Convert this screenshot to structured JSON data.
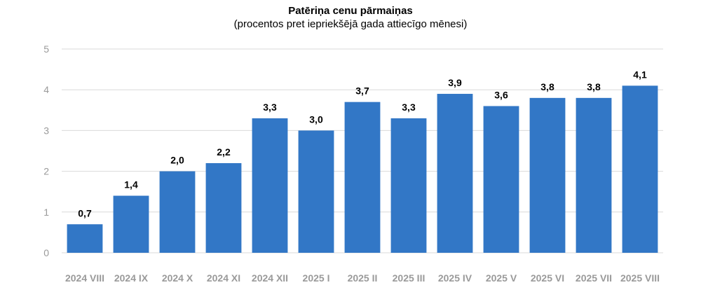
{
  "chart_data": {
    "type": "bar",
    "title": "Patēriņa cenu pārmaiņas",
    "subtitle": "(procentos pret iepriekšējā gada attiecīgo mēnesi)",
    "categories": [
      "2024 VIII",
      "2024 IX",
      "2024 X",
      "2024 XI",
      "2024 XII",
      "2025 I",
      "2025 II",
      "2025 III",
      "2025 IV",
      "2025 V",
      "2025 VI",
      "2025 VII",
      "2025 VIII"
    ],
    "values": [
      0.7,
      1.4,
      2.0,
      2.2,
      3.3,
      3.0,
      3.7,
      3.3,
      3.9,
      3.6,
      3.8,
      3.8,
      4.1
    ],
    "value_labels": [
      "0,7",
      "1,4",
      "2,0",
      "2,2",
      "3,3",
      "3,0",
      "3,7",
      "3,3",
      "3,9",
      "3,6",
      "3,8",
      "3,8",
      "4,1"
    ],
    "yticks": [
      "0",
      "1",
      "2",
      "3",
      "4",
      "5"
    ],
    "ylim": [
      0,
      5
    ],
    "grid": true,
    "bar_color": "#3277c6",
    "grid_color": "#d9d9d9",
    "xlabel": "",
    "ylabel": ""
  }
}
